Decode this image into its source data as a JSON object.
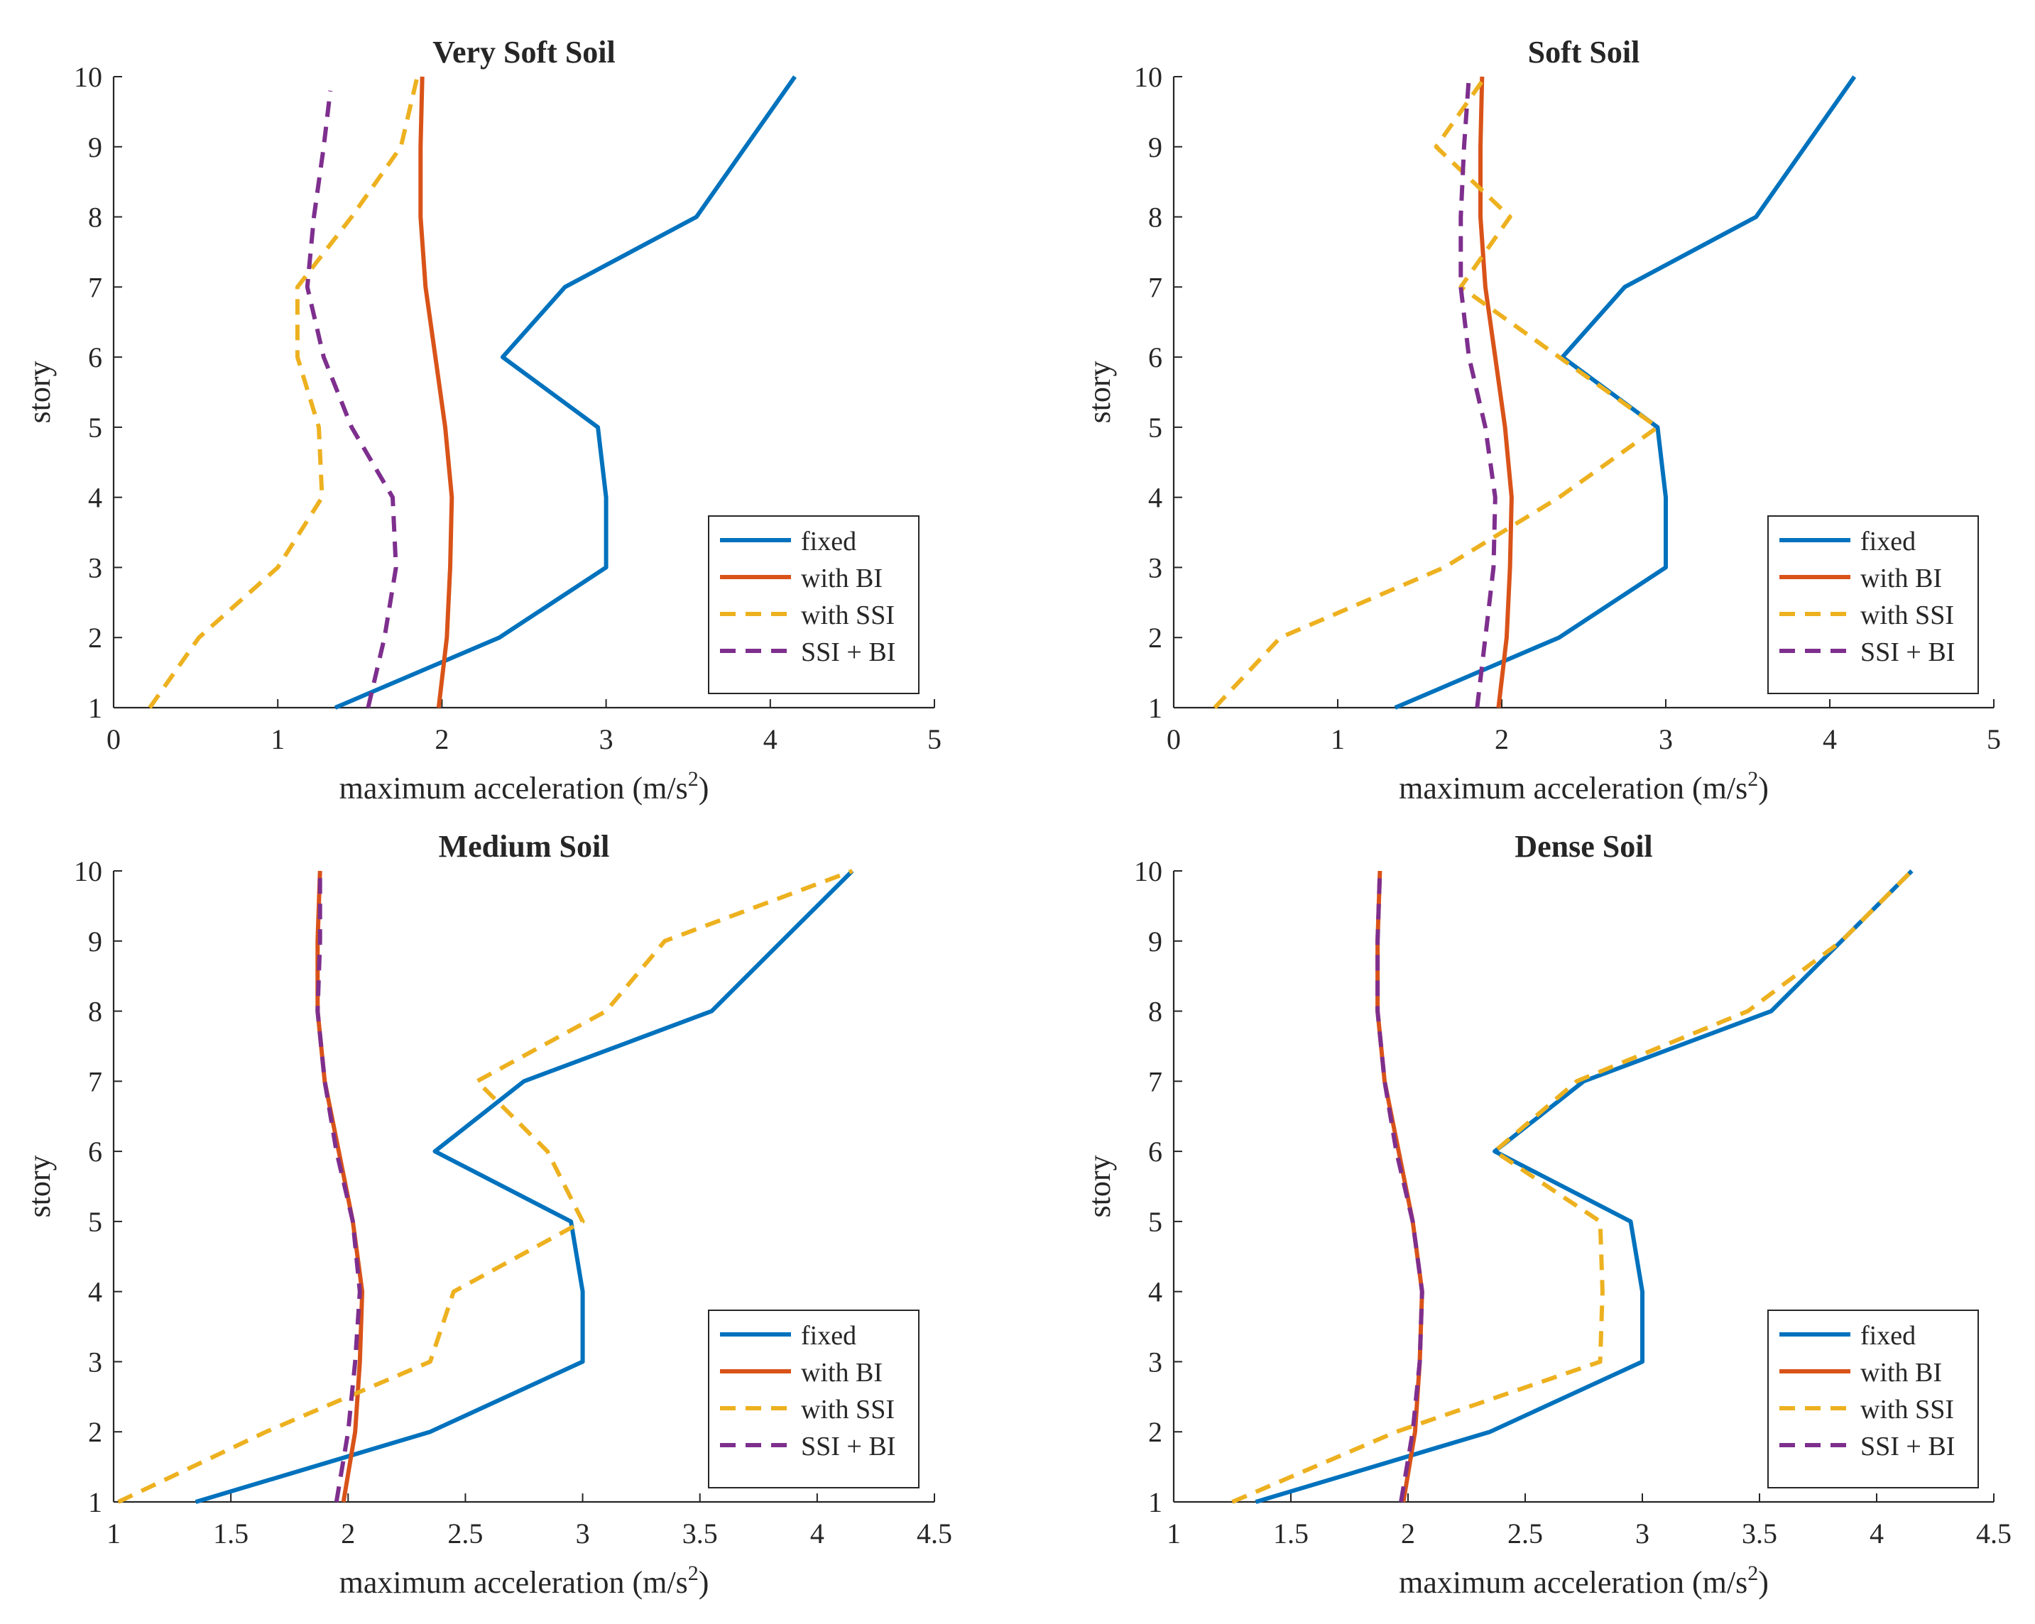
{
  "figure": {
    "layout": "2x2 subplot grid"
  },
  "colors": {
    "fixed": "#0072BD",
    "with_bi": "#D95319",
    "with_ssi": "#EDB120",
    "ssi_bi": "#7E2F8E",
    "axis": "#262626"
  },
  "chart_data": [
    {
      "type": "line",
      "title": "Very Soft Soil",
      "xlabel": "maximum acceleration (m/s",
      "xlabel_sup": "2",
      "xlabel_end": ")",
      "ylabel": "story",
      "xlim": [
        0,
        5
      ],
      "ylim": [
        1,
        10
      ],
      "xticks": [
        0,
        1,
        2,
        3,
        4,
        5
      ],
      "xtick_labels": [
        "0",
        "1",
        "2",
        "3",
        "4",
        "5"
      ],
      "yticks": [
        1,
        2,
        3,
        4,
        5,
        6,
        7,
        8,
        9,
        10
      ],
      "ytick_labels": [
        "1",
        "2",
        "3",
        "4",
        "5",
        "6",
        "7",
        "8",
        "9",
        "10"
      ],
      "legend_position": "bottom-right",
      "series": [
        {
          "name": "fixed",
          "style": "solid",
          "color_key": "fixed",
          "x": [
            1.35,
            2.35,
            3.0,
            3.0,
            2.95,
            2.37,
            2.75,
            3.55,
            3.85,
            4.15
          ],
          "y": [
            1,
            2,
            3,
            4,
            5,
            6,
            7,
            8,
            9,
            10
          ]
        },
        {
          "name": "with BI",
          "style": "solid",
          "color_key": "with_bi",
          "x": [
            1.98,
            2.03,
            2.05,
            2.06,
            2.02,
            1.96,
            1.9,
            1.87,
            1.87,
            1.88
          ],
          "y": [
            1,
            2,
            3,
            4,
            5,
            6,
            7,
            8,
            9,
            10
          ]
        },
        {
          "name": "with SSI",
          "style": "dashed",
          "color_key": "with_ssi",
          "x": [
            0.22,
            0.52,
            1.0,
            1.27,
            1.25,
            1.12,
            1.12,
            1.45,
            1.75,
            1.85
          ],
          "y": [
            1,
            2,
            3,
            4,
            5,
            6,
            7,
            8,
            9,
            10
          ]
        },
        {
          "name": "SSI + BI",
          "style": "dashed",
          "color_key": "ssi_bi",
          "x": [
            1.55,
            1.65,
            1.72,
            1.7,
            1.45,
            1.28,
            1.18,
            1.22,
            1.28,
            1.32
          ],
          "y": [
            1,
            2,
            3,
            4,
            5,
            6,
            7,
            8,
            9,
            9.8
          ]
        }
      ]
    },
    {
      "type": "line",
      "title": "Soft Soil",
      "xlabel": "maximum acceleration (m/s",
      "xlabel_sup": "2",
      "xlabel_end": ")",
      "ylabel": "story",
      "xlim": [
        0,
        5
      ],
      "ylim": [
        1,
        10
      ],
      "xticks": [
        0,
        1,
        2,
        3,
        4,
        5
      ],
      "xtick_labels": [
        "0",
        "1",
        "2",
        "3",
        "4",
        "5"
      ],
      "yticks": [
        1,
        2,
        3,
        4,
        5,
        6,
        7,
        8,
        9,
        10
      ],
      "ytick_labels": [
        "1",
        "2",
        "3",
        "4",
        "5",
        "6",
        "7",
        "8",
        "9",
        "10"
      ],
      "legend_position": "bottom-right",
      "series": [
        {
          "name": "fixed",
          "style": "solid",
          "color_key": "fixed",
          "x": [
            1.35,
            2.35,
            3.0,
            3.0,
            2.95,
            2.37,
            2.75,
            3.55,
            3.85,
            4.15
          ],
          "y": [
            1,
            2,
            3,
            4,
            5,
            6,
            7,
            8,
            9,
            10
          ]
        },
        {
          "name": "with BI",
          "style": "solid",
          "color_key": "with_bi",
          "x": [
            1.98,
            2.03,
            2.05,
            2.06,
            2.02,
            1.96,
            1.9,
            1.87,
            1.87,
            1.88
          ],
          "y": [
            1,
            2,
            3,
            4,
            5,
            6,
            7,
            8,
            9,
            10
          ]
        },
        {
          "name": "with SSI",
          "style": "dashed",
          "color_key": "with_ssi",
          "x": [
            0.25,
            0.65,
            1.65,
            2.35,
            2.95,
            2.35,
            1.75,
            2.05,
            1.6,
            1.9
          ],
          "y": [
            1,
            2,
            3,
            4,
            5,
            6,
            7,
            8,
            9,
            10
          ]
        },
        {
          "name": "SSI + BI",
          "style": "dashed",
          "color_key": "ssi_bi",
          "x": [
            1.85,
            1.9,
            1.95,
            1.96,
            1.9,
            1.8,
            1.75,
            1.75,
            1.77,
            1.8
          ],
          "y": [
            1,
            2,
            3,
            4,
            5,
            6,
            7,
            8,
            9,
            10
          ]
        }
      ]
    },
    {
      "type": "line",
      "title": "Medium Soil",
      "xlabel": "maximum acceleration (m/s",
      "xlabel_sup": "2",
      "xlabel_end": ")",
      "ylabel": "story",
      "xlim": [
        1,
        4.5
      ],
      "ylim": [
        1,
        10
      ],
      "xticks": [
        1,
        1.5,
        2,
        2.5,
        3,
        3.5,
        4,
        4.5
      ],
      "xtick_labels": [
        "1",
        "1.5",
        "2",
        "2.5",
        "3",
        "3.5",
        "4",
        "4.5"
      ],
      "yticks": [
        1,
        2,
        3,
        4,
        5,
        6,
        7,
        8,
        9,
        10
      ],
      "ytick_labels": [
        "1",
        "2",
        "3",
        "4",
        "5",
        "6",
        "7",
        "8",
        "9",
        "10"
      ],
      "legend_position": "bottom-right",
      "series": [
        {
          "name": "fixed",
          "style": "solid",
          "color_key": "fixed",
          "x": [
            1.35,
            2.35,
            3.0,
            3.0,
            2.95,
            2.37,
            2.75,
            3.55,
            3.85,
            4.15
          ],
          "y": [
            1,
            2,
            3,
            4,
            5,
            6,
            7,
            8,
            9,
            10
          ]
        },
        {
          "name": "with BI",
          "style": "solid",
          "color_key": "with_bi",
          "x": [
            1.98,
            2.03,
            2.05,
            2.06,
            2.02,
            1.96,
            1.9,
            1.87,
            1.87,
            1.88
          ],
          "y": [
            1,
            2,
            3,
            4,
            5,
            6,
            7,
            8,
            9,
            10
          ]
        },
        {
          "name": "with SSI",
          "style": "dashed",
          "color_key": "with_ssi",
          "x": [
            1.02,
            1.65,
            2.35,
            2.45,
            3.0,
            2.85,
            2.55,
            3.1,
            3.35,
            4.15
          ],
          "y": [
            1,
            2,
            3,
            4,
            5,
            6,
            7,
            8,
            9,
            10
          ]
        },
        {
          "name": "SSI + BI",
          "style": "dashed",
          "color_key": "ssi_bi",
          "x": [
            1.95,
            2.0,
            2.03,
            2.05,
            2.02,
            1.95,
            1.9,
            1.87,
            1.88,
            1.88
          ],
          "y": [
            1,
            2,
            3,
            4,
            5,
            6,
            7,
            8,
            9,
            10
          ]
        }
      ]
    },
    {
      "type": "line",
      "title": "Dense Soil",
      "xlabel": "maximum acceleration (m/s",
      "xlabel_sup": "2",
      "xlabel_end": ")",
      "ylabel": "story",
      "xlim": [
        1,
        4.5
      ],
      "ylim": [
        1,
        10
      ],
      "xticks": [
        1,
        1.5,
        2,
        2.5,
        3,
        3.5,
        4,
        4.5
      ],
      "xtick_labels": [
        "1",
        "1.5",
        "2",
        "2.5",
        "3",
        "3.5",
        "4",
        "4.5"
      ],
      "yticks": [
        1,
        2,
        3,
        4,
        5,
        6,
        7,
        8,
        9,
        10
      ],
      "ytick_labels": [
        "1",
        "2",
        "3",
        "4",
        "5",
        "6",
        "7",
        "8",
        "9",
        "10"
      ],
      "legend_position": "bottom-right",
      "series": [
        {
          "name": "fixed",
          "style": "solid",
          "color_key": "fixed",
          "x": [
            1.35,
            2.35,
            3.0,
            3.0,
            2.95,
            2.37,
            2.75,
            3.55,
            3.85,
            4.15
          ],
          "y": [
            1,
            2,
            3,
            4,
            5,
            6,
            7,
            8,
            9,
            10
          ]
        },
        {
          "name": "with BI",
          "style": "solid",
          "color_key": "with_bi",
          "x": [
            1.98,
            2.03,
            2.05,
            2.06,
            2.02,
            1.96,
            1.9,
            1.87,
            1.87,
            1.88
          ],
          "y": [
            1,
            2,
            3,
            4,
            5,
            6,
            7,
            8,
            9,
            10
          ]
        },
        {
          "name": "with SSI",
          "style": "dashed",
          "color_key": "with_ssi",
          "x": [
            1.25,
            1.95,
            2.82,
            2.83,
            2.82,
            2.37,
            2.72,
            3.45,
            3.85,
            4.15
          ],
          "y": [
            1,
            2,
            3,
            4,
            5,
            6,
            7,
            8,
            9,
            10
          ]
        },
        {
          "name": "SSI + BI",
          "style": "dashed",
          "color_key": "ssi_bi",
          "x": [
            1.97,
            2.02,
            2.05,
            2.06,
            2.02,
            1.95,
            1.9,
            1.87,
            1.87,
            1.88
          ],
          "y": [
            1,
            2,
            3,
            4,
            5,
            6,
            7,
            8,
            9,
            10
          ]
        }
      ]
    }
  ]
}
